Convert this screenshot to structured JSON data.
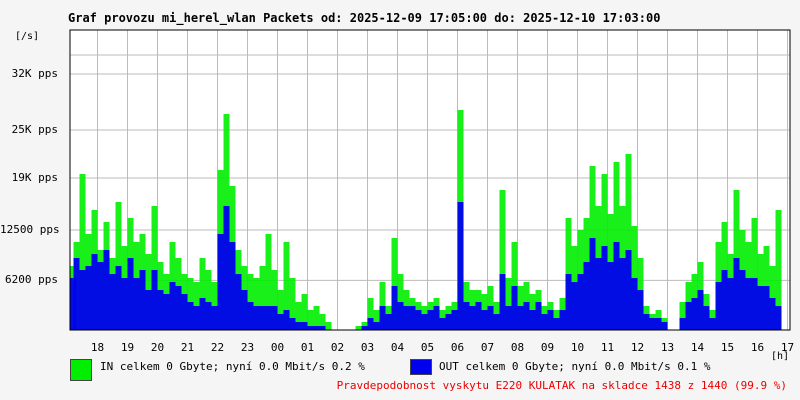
{
  "colors": {
    "in": "#00ee00",
    "out": "#0000ee",
    "grid": "#bbbbbb",
    "footer": "#ee0000"
  },
  "legend": {
    "in": "IN celkem 0 Gbyte; nyní   0.0 Mbit/s 0.2 %",
    "out": "OUT celkem 0 Gbyte; nyní   0.0 Mbit/s 0.1 %"
  },
  "footer": "Pravdepodobnost vyskytu E220 KULATAK na skladce 1438 z 1440 (99.9 %)",
  "chart_data": {
    "type": "area",
    "title": "Graf provozu mi_herel_wlan Packets od: 2025-12-09 17:05:00 do: 2025-12-10 17:03:00",
    "yunit": "[/s]",
    "xunit": "[h]",
    "ylim": [
      0,
      37500
    ],
    "grid": true,
    "yticks": [
      {
        "value": 6200,
        "label": "6200 pps"
      },
      {
        "value": 12500,
        "label": "12500 pps"
      },
      {
        "value": 19000,
        "label": "19K pps"
      },
      {
        "value": 25000,
        "label": "25K pps"
      },
      {
        "value": 32000,
        "label": "32K pps"
      }
    ],
    "xticks": [
      "18",
      "19",
      "20",
      "21",
      "22",
      "23",
      "00",
      "01",
      "02",
      "03",
      "04",
      "05",
      "06",
      "07",
      "08",
      "09",
      "10",
      "11",
      "12",
      "13",
      "14",
      "15",
      "16",
      "17"
    ],
    "x_hours": [
      17.1,
      17.3,
      17.5,
      17.7,
      17.9,
      18.1,
      18.3,
      18.5,
      18.7,
      18.9,
      19.1,
      19.3,
      19.5,
      19.7,
      19.9,
      20.1,
      20.3,
      20.5,
      20.7,
      20.9,
      21.1,
      21.3,
      21.5,
      21.7,
      21.9,
      22.1,
      22.3,
      22.5,
      22.7,
      22.9,
      23.1,
      23.3,
      23.5,
      23.7,
      23.9,
      24.1,
      24.3,
      24.5,
      24.7,
      24.9,
      25.1,
      25.3,
      25.5,
      25.7,
      25.9,
      26.1,
      26.3,
      26.5,
      26.7,
      26.9,
      27.1,
      27.3,
      27.5,
      27.7,
      27.9,
      28.1,
      28.3,
      28.5,
      28.7,
      28.9,
      29.1,
      29.3,
      29.5,
      29.7,
      29.9,
      30.1,
      30.3,
      30.5,
      30.7,
      30.9,
      31.1,
      31.3,
      31.5,
      31.7,
      31.9,
      32.1,
      32.3,
      32.5,
      32.7,
      32.9,
      33.1,
      33.3,
      33.5,
      33.7,
      33.9,
      34.1,
      34.3,
      34.5,
      34.7,
      34.9,
      35.1,
      35.3,
      35.5,
      35.7,
      35.9,
      36.1,
      36.3,
      36.5,
      36.7,
      36.9,
      37.1,
      37.3,
      37.5,
      37.7,
      37.9,
      38.1,
      38.3,
      38.5,
      38.7,
      38.9,
      39.1,
      39.3,
      39.5,
      39.7,
      39.9,
      40.1,
      40.3,
      40.5,
      40.7,
      40.9,
      41.1
    ],
    "series": [
      {
        "name": "IN",
        "color": "#00ee00",
        "values": [
          8000,
          11000,
          19500,
          12000,
          15000,
          10000,
          13500,
          9000,
          16000,
          10500,
          14000,
          11000,
          12000,
          9500,
          15500,
          8500,
          7000,
          11000,
          9000,
          7000,
          6500,
          6000,
          9000,
          7500,
          6000,
          20000,
          27000,
          18000,
          10000,
          8000,
          7000,
          6500,
          8000,
          12000,
          7500,
          5000,
          11000,
          6500,
          3500,
          4500,
          2500,
          3000,
          2000,
          1000,
          0,
          0,
          0,
          0,
          500,
          1000,
          4000,
          2500,
          6000,
          3000,
          11500,
          7000,
          5000,
          4000,
          3500,
          3000,
          3500,
          4000,
          2500,
          3000,
          3500,
          27500,
          6000,
          5000,
          5000,
          4500,
          5500,
          3500,
          17500,
          6500,
          11000,
          5500,
          6000,
          4500,
          5000,
          3000,
          3500,
          2500,
          4000,
          14000,
          10500,
          12500,
          14000,
          20500,
          15500,
          19500,
          14500,
          21000,
          15500,
          22000,
          13000,
          9000,
          3000,
          2000,
          2500,
          1500,
          0,
          0,
          3500,
          6000,
          7000,
          8500,
          4500,
          2500,
          11000,
          13500,
          9500,
          17500,
          12500,
          11000,
          14000,
          9500,
          10500,
          8000,
          15000
        ]
      },
      {
        "name": "OUT",
        "color": "#0000ee",
        "values": [
          6500,
          9000,
          7500,
          8000,
          9500,
          8500,
          10000,
          7000,
          8000,
          6500,
          9000,
          6500,
          7500,
          5000,
          7500,
          5000,
          4500,
          6000,
          5500,
          4500,
          3500,
          3000,
          4000,
          3500,
          3000,
          12000,
          15500,
          11000,
          7000,
          5000,
          3500,
          3000,
          3000,
          3000,
          3000,
          2000,
          2500,
          1500,
          1000,
          1000,
          500,
          500,
          500,
          0,
          0,
          0,
          0,
          0,
          0,
          500,
          1500,
          1000,
          3000,
          2000,
          5500,
          3500,
          3000,
          3000,
          2500,
          2000,
          2500,
          3000,
          1500,
          2000,
          2500,
          16000,
          3500,
          3000,
          3500,
          2500,
          3000,
          2000,
          7000,
          3000,
          5500,
          3000,
          3500,
          2500,
          3500,
          2000,
          2500,
          1500,
          2500,
          7000,
          6000,
          7000,
          8500,
          11500,
          9000,
          10500,
          8500,
          11000,
          9000,
          10000,
          6500,
          5000,
          2000,
          1500,
          1500,
          1000,
          0,
          0,
          1500,
          3500,
          4000,
          5000,
          3000,
          1500,
          6000,
          7500,
          6500,
          9000,
          7500,
          6500,
          6500,
          5500,
          5500,
          4000,
          3000
        ]
      }
    ]
  }
}
